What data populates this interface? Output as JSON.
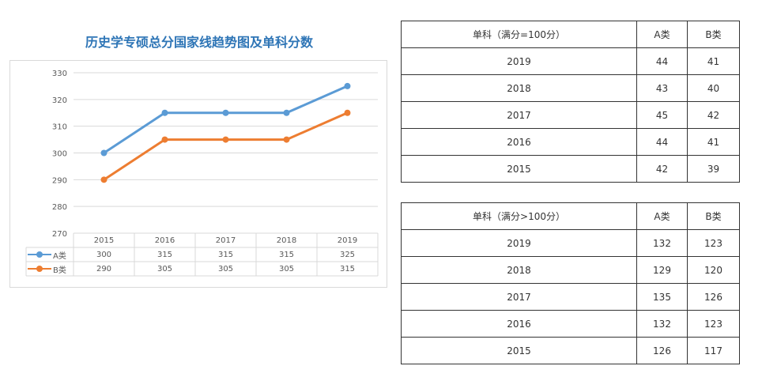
{
  "chart_data": {
    "type": "line",
    "title": "历史学专硕总分国家线趋势图及单科分数",
    "categories": [
      "2015",
      "2016",
      "2017",
      "2018",
      "2019"
    ],
    "series": [
      {
        "name": "A类",
        "values": [
          300,
          315,
          315,
          315,
          325
        ],
        "color": "#5b9bd5"
      },
      {
        "name": "B类",
        "values": [
          290,
          305,
          305,
          305,
          315
        ],
        "color": "#ed7d31"
      }
    ],
    "ylim": [
      270,
      330
    ],
    "yticks": [
      "270",
      "280",
      "290",
      "300",
      "310",
      "320",
      "330"
    ],
    "grid": true,
    "data_table": true
  },
  "tables": [
    {
      "header": [
        "单科（满分=100分）",
        "A类",
        "B类"
      ],
      "rows": [
        [
          "2019",
          "44",
          "41"
        ],
        [
          "2018",
          "43",
          "40"
        ],
        [
          "2017",
          "45",
          "42"
        ],
        [
          "2016",
          "44",
          "41"
        ],
        [
          "2015",
          "42",
          "39"
        ]
      ]
    },
    {
      "header": [
        "单科（满分>100分）",
        "A类",
        "B类"
      ],
      "rows": [
        [
          "2019",
          "132",
          "123"
        ],
        [
          "2018",
          "129",
          "120"
        ],
        [
          "2017",
          "135",
          "126"
        ],
        [
          "2016",
          "132",
          "123"
        ],
        [
          "2015",
          "126",
          "117"
        ]
      ]
    }
  ]
}
